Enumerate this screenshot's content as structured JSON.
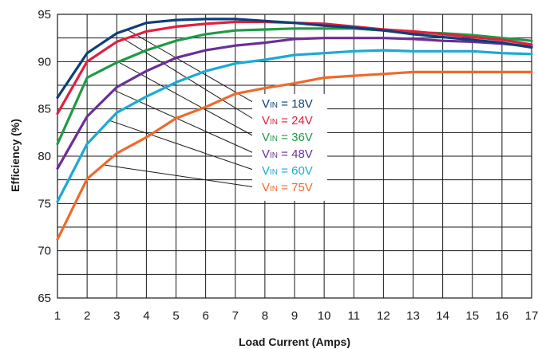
{
  "chart_data": {
    "type": "line",
    "title": "",
    "xlabel": "Load Current (Amps)",
    "ylabel": "Efficiency (%)",
    "xlim": [
      1,
      17
    ],
    "ylim": [
      65,
      95
    ],
    "x_ticks": [
      "1",
      "2",
      "3",
      "4",
      "5",
      "6",
      "7",
      "8",
      "9",
      "10",
      "11",
      "12",
      "13",
      "14",
      "15",
      "16",
      "17"
    ],
    "y_ticks": [
      "65",
      "70",
      "75",
      "80",
      "85",
      "90",
      "95"
    ],
    "grid": true,
    "legend_placement": "center-right",
    "x": [
      1,
      2,
      3,
      4,
      5,
      6,
      7,
      8,
      9,
      10,
      11,
      12,
      13,
      14,
      15,
      16,
      17
    ],
    "series": [
      {
        "label_v": "V",
        "label_sub": "IN",
        "label_val": " = 18V",
        "color": "#0d3f78",
        "values": [
          86.2,
          90.9,
          93.0,
          94.1,
          94.4,
          94.5,
          94.5,
          94.3,
          94.1,
          93.8,
          93.6,
          93.3,
          92.9,
          92.6,
          92.3,
          92.0,
          91.5
        ]
      },
      {
        "label_v": "V",
        "label_sub": "IN",
        "label_val": " = 24V",
        "color": "#e0203f",
        "values": [
          84.5,
          90.0,
          92.1,
          93.2,
          93.7,
          94.0,
          94.2,
          94.2,
          94.1,
          94.0,
          93.7,
          93.4,
          93.2,
          92.9,
          92.6,
          92.3,
          91.8
        ]
      },
      {
        "label_v": "V",
        "label_sub": "IN",
        "label_val": " = 36V",
        "color": "#1f9a46",
        "values": [
          81.3,
          88.3,
          89.9,
          91.2,
          92.2,
          92.9,
          93.3,
          93.4,
          93.5,
          93.5,
          93.5,
          93.3,
          93.1,
          93.0,
          92.8,
          92.5,
          92.2
        ]
      },
      {
        "label_v": "V",
        "label_sub": "IN",
        "label_val": " = 48V",
        "color": "#6b2f95",
        "values": [
          78.7,
          84.2,
          87.3,
          89.0,
          90.4,
          91.2,
          91.7,
          92.0,
          92.4,
          92.5,
          92.5,
          92.5,
          92.4,
          92.2,
          92.1,
          91.9,
          91.6
        ]
      },
      {
        "label_v": "V",
        "label_sub": "IN",
        "label_val": " = 60V",
        "color": "#1aaad4",
        "values": [
          75.2,
          81.3,
          84.6,
          86.3,
          87.8,
          89.0,
          89.8,
          90.2,
          90.7,
          90.9,
          91.1,
          91.2,
          91.1,
          91.1,
          91.1,
          90.9,
          90.8
        ]
      },
      {
        "label_v": "V",
        "label_sub": "IN",
        "label_val": " = 75V",
        "color": "#ee6a2c",
        "values": [
          71.2,
          77.6,
          80.3,
          82.0,
          84.0,
          85.2,
          86.6,
          87.2,
          87.7,
          88.3,
          88.5,
          88.7,
          88.9,
          88.9,
          88.9,
          88.9,
          88.9
        ]
      }
    ]
  }
}
